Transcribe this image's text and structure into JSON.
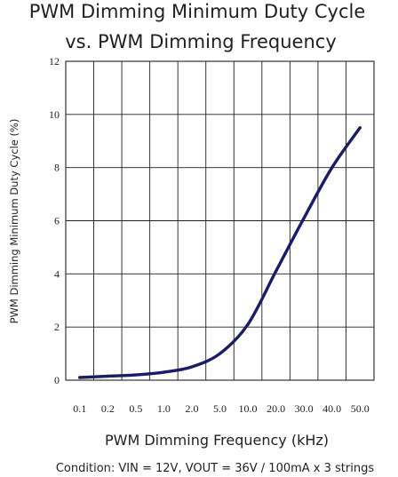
{
  "chart_data": {
    "type": "line",
    "title": [
      "PWM Dimming Minimum Duty Cycle",
      "vs. PWM Dimming Frequency"
    ],
    "xlabel": "PWM Dimming Frequency (kHz)",
    "ylabel": "PWM Dimming Minimum Duty Cycle (%)",
    "note": "Condition: VIN = 12V, VOUT = 36V / 100mA x 3 strings",
    "categories": [
      "0.1",
      "0.2",
      "0.5",
      "1.0",
      "2.0",
      "5.0",
      "10.0",
      "20.0",
      "30.0",
      "40.0",
      "50.0"
    ],
    "y_ticks": [
      "0",
      "2",
      "4",
      "6",
      "8",
      "10",
      "12"
    ],
    "ylim": [
      0,
      12
    ],
    "grid": true,
    "series": [
      {
        "values": [
          0.1,
          0.15,
          0.2,
          0.3,
          0.5,
          1.0,
          2.1,
          4.1,
          6.1,
          8.0,
          9.5
        ],
        "color": "#1b1a6b"
      }
    ]
  }
}
